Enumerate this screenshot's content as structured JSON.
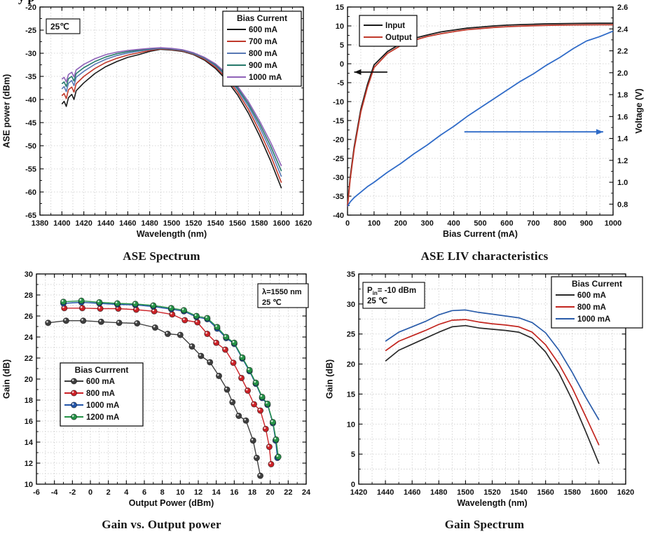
{
  "page": {
    "background": "#ffffff",
    "cropped_text_fragment": "y p"
  },
  "chart_data": [
    {
      "type": "line",
      "title": "ASE Spectrum",
      "xlabel": "Wavelength (nm)",
      "ylabel": "ASE power (dBm)",
      "xlim": [
        1380,
        1620
      ],
      "ylim": [
        -65,
        -20
      ],
      "xticks": [
        1380,
        1400,
        1420,
        1440,
        1460,
        1480,
        1500,
        1520,
        1540,
        1560,
        1580,
        1600,
        1620
      ],
      "yticks": [
        -65,
        -60,
        -55,
        -50,
        -45,
        -40,
        -35,
        -30,
        -25,
        -20
      ],
      "x_minor": 10,
      "y_minor": 2.5,
      "grid_x": 10,
      "grid_y": 5,
      "grid": true,
      "legend": {
        "title": "Bias Current",
        "position": "top-right"
      },
      "annotation": {
        "lines": [
          [
            {
              "t": "25℃"
            }
          ]
        ]
      },
      "series": [
        {
          "name": "600 mA",
          "color": "#1a1a1a",
          "x": [
            1400,
            1402,
            1404,
            1406,
            1409,
            1411,
            1413,
            1420,
            1430,
            1440,
            1450,
            1460,
            1470,
            1480,
            1490,
            1500,
            1510,
            1520,
            1530,
            1540,
            1550,
            1560,
            1570,
            1580,
            1590,
            1600
          ],
          "y": [
            -41.0,
            -40.4,
            -41.5,
            -39.6,
            -38.9,
            -40.0,
            -38.1,
            -36.4,
            -34.4,
            -32.9,
            -31.8,
            -30.9,
            -30.3,
            -29.6,
            -29.15,
            -29.3,
            -29.6,
            -30.3,
            -31.5,
            -33.3,
            -35.8,
            -39.0,
            -43.0,
            -47.8,
            -53.2,
            -59.2
          ]
        },
        {
          "name": "700 mA",
          "color": "#c0392b",
          "x": [
            1400,
            1402,
            1404,
            1406,
            1409,
            1411,
            1413,
            1420,
            1430,
            1440,
            1450,
            1460,
            1470,
            1480,
            1490,
            1500,
            1510,
            1520,
            1530,
            1540,
            1550,
            1560,
            1570,
            1580,
            1590,
            1600
          ],
          "y": [
            -39.2,
            -38.7,
            -39.8,
            -37.9,
            -37.3,
            -38.4,
            -36.6,
            -35.0,
            -33.3,
            -32.0,
            -31.1,
            -30.4,
            -29.9,
            -29.4,
            -29.05,
            -29.2,
            -29.5,
            -30.2,
            -31.3,
            -33.0,
            -35.4,
            -38.4,
            -42.2,
            -46.8,
            -52.0,
            -58.0
          ]
        },
        {
          "name": "800 mA",
          "color": "#5878b4",
          "x": [
            1400,
            1402,
            1404,
            1406,
            1409,
            1411,
            1413,
            1420,
            1430,
            1440,
            1450,
            1460,
            1470,
            1480,
            1490,
            1500,
            1510,
            1520,
            1530,
            1540,
            1550,
            1560,
            1570,
            1580,
            1590,
            1600
          ],
          "y": [
            -37.7,
            -37.2,
            -38.3,
            -36.5,
            -35.9,
            -37.0,
            -35.2,
            -33.9,
            -32.4,
            -31.3,
            -30.5,
            -29.95,
            -29.55,
            -29.2,
            -28.95,
            -29.1,
            -29.4,
            -30.1,
            -31.1,
            -32.7,
            -35.0,
            -37.9,
            -41.5,
            -45.9,
            -50.9,
            -56.7
          ]
        },
        {
          "name": "900 mA",
          "color": "#26796b",
          "x": [
            1400,
            1402,
            1404,
            1406,
            1409,
            1411,
            1413,
            1420,
            1430,
            1440,
            1450,
            1460,
            1470,
            1480,
            1490,
            1500,
            1510,
            1520,
            1530,
            1540,
            1550,
            1560,
            1570,
            1580,
            1590,
            1600
          ],
          "y": [
            -36.6,
            -36.2,
            -37.2,
            -35.5,
            -35.0,
            -36.0,
            -34.4,
            -33.1,
            -31.8,
            -30.8,
            -30.1,
            -29.65,
            -29.35,
            -29.05,
            -28.85,
            -29.0,
            -29.3,
            -30.0,
            -31.0,
            -32.5,
            -34.7,
            -37.5,
            -41.0,
            -45.2,
            -50.0,
            -55.5
          ]
        },
        {
          "name": "1000 mA",
          "color": "#8f62b8",
          "x": [
            1400,
            1402,
            1404,
            1406,
            1409,
            1411,
            1413,
            1420,
            1430,
            1440,
            1450,
            1460,
            1470,
            1480,
            1490,
            1500,
            1510,
            1520,
            1530,
            1540,
            1550,
            1560,
            1570,
            1580,
            1590,
            1600
          ],
          "y": [
            -35.6,
            -35.2,
            -36.2,
            -34.6,
            -34.1,
            -35.1,
            -33.6,
            -32.4,
            -31.2,
            -30.3,
            -29.75,
            -29.4,
            -29.15,
            -28.95,
            -28.8,
            -28.95,
            -29.25,
            -29.9,
            -30.9,
            -32.3,
            -34.4,
            -37.1,
            -40.5,
            -44.6,
            -49.2,
            -54.4
          ]
        }
      ]
    },
    {
      "type": "line",
      "title": "ASE LIV characteristics",
      "xlabel": "Bias Current (mA)",
      "ylabel": "",
      "ylabel_right": "Voltage (V)",
      "xlim": [
        0,
        1000
      ],
      "ylim": [
        -40,
        15
      ],
      "ylim_right": [
        0.7,
        2.6
      ],
      "xticks": [
        0,
        100,
        200,
        300,
        400,
        500,
        600,
        700,
        800,
        900,
        1000
      ],
      "yticks": [
        -40,
        -35,
        -30,
        -25,
        -20,
        -15,
        -10,
        -5,
        0,
        5,
        10,
        15
      ],
      "yticks_right": [
        0.8,
        1.0,
        1.2,
        1.4,
        1.6,
        1.8,
        2.0,
        2.2,
        2.4,
        2.6
      ],
      "x_minor": 50,
      "y_minor": 2.5,
      "y_minor_right": 0.1,
      "grid_x": 50,
      "grid_y": 5,
      "grid": true,
      "legend": {
        "position": "top-left"
      },
      "arrows": [
        {
          "color": "#111111",
          "from": [
            150,
            -2.2
          ],
          "to": [
            25,
            -2.2
          ]
        },
        {
          "color": "#2f6bc8",
          "from": [
            440,
            -18.0
          ],
          "to": [
            963,
            -18.0
          ]
        }
      ],
      "series": [
        {
          "name": "Input",
          "color": "#1a1a1a",
          "x": [
            0,
            10,
            25,
            50,
            75,
            100,
            150,
            200,
            250,
            300,
            350,
            400,
            450,
            500,
            550,
            600,
            650,
            700,
            750,
            800,
            850,
            900,
            950,
            1000
          ],
          "y": [
            -37.5,
            -30.0,
            -22.0,
            -12.0,
            -5.5,
            -0.3,
            3.2,
            5.3,
            6.7,
            7.6,
            8.4,
            8.9,
            9.4,
            9.7,
            10.0,
            10.2,
            10.35,
            10.45,
            10.55,
            10.6,
            10.65,
            10.68,
            10.7,
            10.7
          ]
        },
        {
          "name": "Output",
          "color": "#c0392b",
          "x": [
            0,
            10,
            25,
            50,
            75,
            100,
            150,
            200,
            250,
            300,
            350,
            400,
            450,
            500,
            550,
            600,
            650,
            700,
            750,
            800,
            850,
            900,
            950,
            1000
          ],
          "y": [
            -37.8,
            -30.6,
            -22.6,
            -12.7,
            -6.2,
            -1.0,
            2.7,
            4.8,
            6.2,
            7.2,
            7.9,
            8.5,
            9.0,
            9.3,
            9.6,
            9.8,
            9.95,
            10.05,
            10.15,
            10.2,
            10.25,
            10.28,
            10.3,
            10.3
          ]
        },
        {
          "name": "Voltage",
          "color": "#2f6bc8",
          "axis": "right",
          "in_legend": false,
          "x": [
            0,
            10,
            25,
            50,
            75,
            100,
            150,
            200,
            250,
            300,
            350,
            400,
            450,
            500,
            550,
            600,
            650,
            700,
            750,
            800,
            850,
            900,
            950,
            1000
          ],
          "y": [
            0.78,
            0.82,
            0.86,
            0.91,
            0.96,
            1.0,
            1.09,
            1.17,
            1.26,
            1.34,
            1.43,
            1.51,
            1.6,
            1.68,
            1.76,
            1.84,
            1.92,
            1.99,
            2.07,
            2.14,
            2.22,
            2.29,
            2.33,
            2.38
          ]
        }
      ]
    },
    {
      "type": "scatter-line",
      "title": "Gain vs. Output power",
      "xlabel": "Output Power (dBm)",
      "ylabel": "Gain (dB)",
      "xlim": [
        -6,
        24
      ],
      "ylim": [
        10,
        30
      ],
      "xticks": [
        -6,
        -4,
        -2,
        0,
        2,
        4,
        6,
        8,
        10,
        12,
        14,
        16,
        18,
        20,
        22,
        24
      ],
      "yticks": [
        10,
        12,
        14,
        16,
        18,
        20,
        22,
        24,
        26,
        28,
        30
      ],
      "x_minor": 1,
      "y_minor": 1,
      "grid_x": 1,
      "grid_y": 1,
      "grid": true,
      "legend": {
        "title": "Bias Currrent",
        "position": "bottom-left"
      },
      "annotation": {
        "lines": [
          [
            {
              "t": "λ=1550 nm"
            }
          ],
          [
            {
              "t": "25 ℃"
            }
          ]
        ]
      },
      "series": [
        {
          "name": "600 mA",
          "color": "#3f3f3f",
          "marker": true,
          "x": [
            -4.7,
            -2.7,
            -0.8,
            1.2,
            3.2,
            5.2,
            7.2,
            8.6,
            10.0,
            11.3,
            12.3,
            13.3,
            14.3,
            15.2,
            15.8,
            16.5,
            17.3,
            18.1,
            18.5,
            18.9
          ],
          "y": [
            25.35,
            25.55,
            25.55,
            25.45,
            25.35,
            25.3,
            24.9,
            24.3,
            24.2,
            23.1,
            22.2,
            21.6,
            20.3,
            19.0,
            17.8,
            16.5,
            16.05,
            14.15,
            12.5,
            10.8
          ]
        },
        {
          "name": "800 mA",
          "color": "#cc2127",
          "marker": true,
          "x": [
            -2.9,
            -0.9,
            1.1,
            3.1,
            5.1,
            7.1,
            9.1,
            10.5,
            11.9,
            13.0,
            14.0,
            15.0,
            15.9,
            16.8,
            17.5,
            18.2,
            18.9,
            19.5,
            19.9,
            20.1
          ],
          "y": [
            26.75,
            26.75,
            26.7,
            26.7,
            26.6,
            26.45,
            26.15,
            25.6,
            25.4,
            24.3,
            23.45,
            22.8,
            21.55,
            20.1,
            18.9,
            17.6,
            17.0,
            15.25,
            13.55,
            11.9
          ]
        },
        {
          "name": "1000 mA",
          "color": "#2355a8",
          "marker": true,
          "x": [
            -3.0,
            -1.0,
            1.0,
            3.0,
            5.0,
            7.0,
            9.0,
            10.4,
            11.8,
            13.0,
            14.1,
            15.1,
            16.0,
            16.9,
            17.7,
            18.4,
            19.1,
            19.7,
            20.3,
            20.6,
            20.8
          ],
          "y": [
            27.2,
            27.3,
            27.2,
            27.1,
            27.05,
            26.9,
            26.65,
            26.45,
            25.9,
            25.7,
            24.8,
            23.9,
            23.35,
            21.95,
            20.75,
            19.55,
            18.2,
            17.55,
            15.8,
            14.15,
            12.5
          ]
        },
        {
          "name": "1200 mA",
          "color": "#259247",
          "marker": true,
          "x": [
            -3.0,
            -1.0,
            1.0,
            3.0,
            5.0,
            7.0,
            9.0,
            10.4,
            11.8,
            13.0,
            14.1,
            15.1,
            16.0,
            16.9,
            17.7,
            18.4,
            19.1,
            19.7,
            20.3,
            20.65,
            20.9
          ],
          "y": [
            27.35,
            27.45,
            27.3,
            27.2,
            27.15,
            27.0,
            26.75,
            26.55,
            26.0,
            25.8,
            24.95,
            24.0,
            23.45,
            22.05,
            20.85,
            19.65,
            18.3,
            17.65,
            15.9,
            14.25,
            12.6
          ]
        }
      ]
    },
    {
      "type": "line",
      "title": "Gain Spectrum",
      "xlabel": "Wavelength (nm)",
      "ylabel": "Gain (dB)",
      "xlim": [
        1420,
        1620
      ],
      "ylim": [
        0,
        35
      ],
      "xticks": [
        1420,
        1440,
        1460,
        1480,
        1500,
        1520,
        1540,
        1560,
        1580,
        1600,
        1620
      ],
      "yticks": [
        0,
        5,
        10,
        15,
        20,
        25,
        30,
        35
      ],
      "x_minor": 10,
      "y_minor": 2.5,
      "grid_x": 10,
      "grid_y": 2.5,
      "grid": true,
      "legend": {
        "title": "Bias Current",
        "position": "top-right"
      },
      "annotation": {
        "lines": [
          [
            {
              "t": "P"
            },
            {
              "t": "in",
              "sub": true
            },
            {
              "t": "= -10 dBm"
            }
          ],
          [
            {
              "t": "25 ℃"
            }
          ]
        ]
      },
      "series": [
        {
          "name": "600 mA",
          "color": "#2a2a2a",
          "x": [
            1440,
            1450,
            1460,
            1470,
            1480,
            1490,
            1500,
            1510,
            1520,
            1530,
            1540,
            1550,
            1560,
            1570,
            1580,
            1590,
            1600
          ],
          "y": [
            20.5,
            22.3,
            23.3,
            24.3,
            25.3,
            26.2,
            26.4,
            26.0,
            25.8,
            25.6,
            25.3,
            24.3,
            22.0,
            18.5,
            14.0,
            8.8,
            3.4
          ]
        },
        {
          "name": "800 mA",
          "color": "#c2251f",
          "x": [
            1440,
            1450,
            1460,
            1470,
            1480,
            1490,
            1500,
            1510,
            1520,
            1530,
            1540,
            1550,
            1560,
            1570,
            1580,
            1590,
            1600
          ],
          "y": [
            22.2,
            23.8,
            24.7,
            25.6,
            26.6,
            27.3,
            27.4,
            27.0,
            26.7,
            26.5,
            26.2,
            25.3,
            23.2,
            20.0,
            16.0,
            11.3,
            6.5
          ]
        },
        {
          "name": "1000 mA",
          "color": "#2a5caa",
          "x": [
            1440,
            1450,
            1460,
            1470,
            1480,
            1490,
            1500,
            1510,
            1520,
            1530,
            1540,
            1550,
            1560,
            1570,
            1580,
            1590,
            1600
          ],
          "y": [
            23.8,
            25.3,
            26.2,
            27.1,
            28.2,
            28.9,
            29.0,
            28.6,
            28.3,
            28.0,
            27.7,
            26.9,
            25.2,
            22.3,
            18.6,
            14.5,
            10.7
          ]
        }
      ]
    }
  ]
}
